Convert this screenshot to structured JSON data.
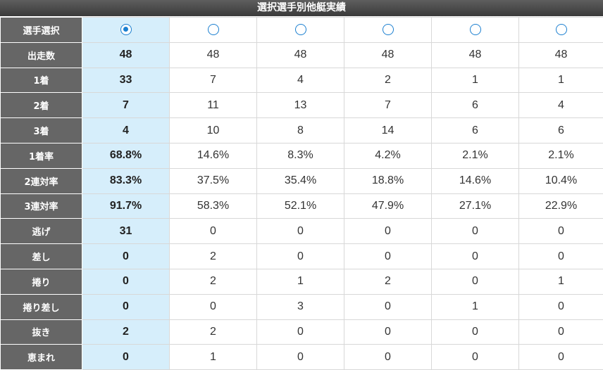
{
  "title": "選択選手別他艇実績",
  "colors": {
    "header_bg": "#666666",
    "selected_bg": "#d6eefb",
    "radio": "#1b7fd0"
  },
  "row_labels": [
    "選手選択",
    "出走数",
    "1着",
    "2着",
    "3着",
    "1着率",
    "2連対率",
    "3連対率",
    "逃げ",
    "差し",
    "捲り",
    "捲り差し",
    "抜き",
    "恵まれ"
  ],
  "selected_column": 0,
  "columns": [
    {
      "values": [
        "48",
        "33",
        "7",
        "4",
        "68.8%",
        "83.3%",
        "91.7%",
        "31",
        "0",
        "0",
        "0",
        "2",
        "0"
      ]
    },
    {
      "values": [
        "48",
        "7",
        "11",
        "10",
        "14.6%",
        "37.5%",
        "58.3%",
        "0",
        "2",
        "2",
        "0",
        "2",
        "1"
      ]
    },
    {
      "values": [
        "48",
        "4",
        "13",
        "8",
        "8.3%",
        "35.4%",
        "52.1%",
        "0",
        "0",
        "1",
        "3",
        "0",
        "0"
      ]
    },
    {
      "values": [
        "48",
        "2",
        "7",
        "14",
        "4.2%",
        "18.8%",
        "47.9%",
        "0",
        "0",
        "2",
        "0",
        "0",
        "0"
      ]
    },
    {
      "values": [
        "48",
        "1",
        "6",
        "6",
        "2.1%",
        "14.6%",
        "27.1%",
        "0",
        "0",
        "0",
        "1",
        "0",
        "0"
      ]
    },
    {
      "values": [
        "48",
        "1",
        "4",
        "6",
        "2.1%",
        "10.4%",
        "22.9%",
        "0",
        "0",
        "1",
        "0",
        "0",
        "0"
      ]
    }
  ]
}
